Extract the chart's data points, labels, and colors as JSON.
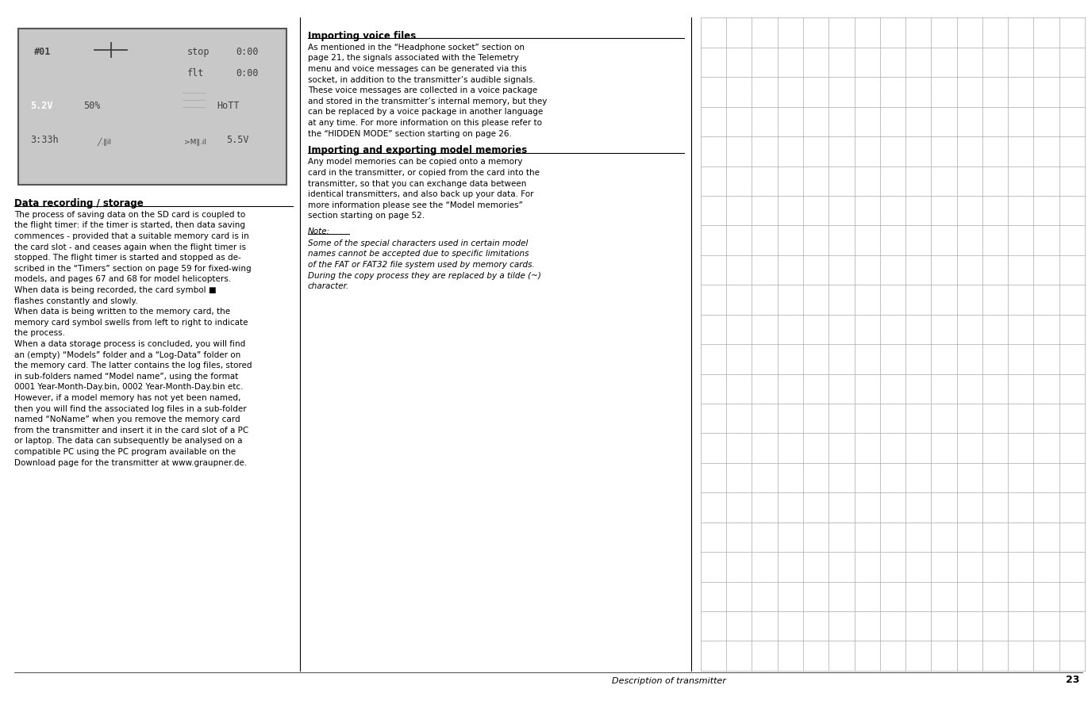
{
  "bg_color": "#ffffff",
  "page_number": "23",
  "footer_text": "Description of transmitter",
  "screen_bg": "#c8c8c8",
  "screen_dark": "#606060",
  "screen_text": "#404040",
  "highlight_bg": "#606060",
  "highlight_text": "#ffffff",
  "section1_heading": "Data recording / storage",
  "section2_heading": "Importing voice files",
  "section3_heading": "Importing and exporting model memories",
  "note_heading": "Note:",
  "section1_body": "The process of saving data on the SD card is coupled to\nthe flight timer: if the timer is started, then data saving\ncommences - provided that a suitable memory card is in\nthe card slot - and ceases again when the flight timer is\nstopped. The flight timer is started and stopped as de-\nscribed in the “Timers” section on page 59 for fixed-wing\nmodels, and pages 67 and 68 for model helicopters.\nWhen data is being recorded, the card symbol ■\nflashes constantly and slowly.\nWhen data is being written to the memory card, the\nmemory card symbol swells from left to right to indicate\nthe process.\nWhen a data storage process is concluded, you will find\nan (empty) “Models” folder and a “Log-Data” folder on\nthe memory card. The latter contains the log files, stored\nin sub-folders named “Model name”, using the format\n0001 Year-Month-Day.bin, 0002 Year-Month-Day.bin etc.\nHowever, if a model memory has not yet been named,\nthen you will find the associated log files in a sub-folder\nnamed “NoName” when you remove the memory card\nfrom the transmitter and insert it in the card slot of a PC\nor laptop. The data can subsequently be analysed on a\ncompatible PC using the PC program available on the\nDownload page for the transmitter at www.graupner.de.",
  "section2_body": "As mentioned in the “Headphone socket” section on\npage 21, the signals associated with the Telemetry\nmenu and voice messages can be generated via this\nsocket, in addition to the transmitter’s audible signals.\nThese voice messages are collected in a voice package\nand stored in the transmitter’s internal memory, but they\ncan be replaced by a voice package in another language\nat any time. For more information on this please refer to\nthe “HIDDEN MODE” section starting on page 26.",
  "section3_body": "Any model memories can be copied onto a memory\ncard in the transmitter, or copied from the card into the\ntransmitter, so that you can exchange data between\nidentical transmitters, and also back up your data. For\nmore information please see the “Model memories”\nsection starting on page 52.",
  "note_body": "Some of the special characters used in certain model\nnames cannot be accepted due to specific limitations\nof the FAT or FAT32 file system used by memory cards.\nDuring the copy process they are replaced by a tilde (~)\ncharacter.",
  "grid_color": "#aaaaaa",
  "divider_color": "#000000",
  "text_color": "#000000",
  "screen_mono_color": "#404040"
}
